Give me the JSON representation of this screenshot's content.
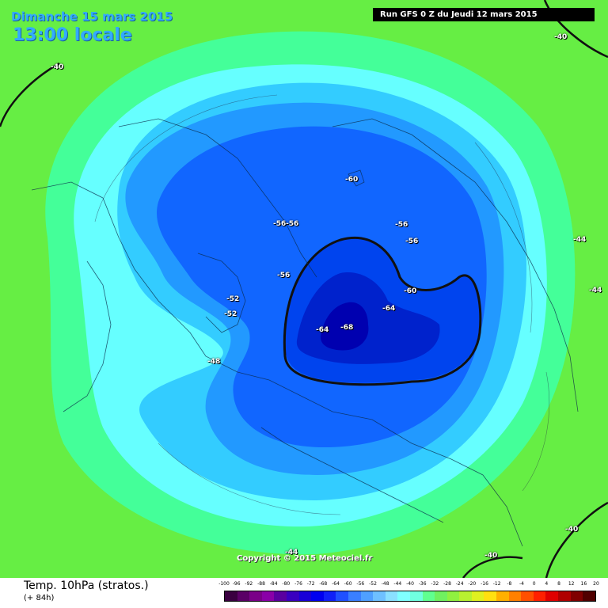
{
  "header": {
    "date": "Dimanche 15 mars 2015",
    "time": "13:00 locale",
    "run": "Run GFS 0 Z du Jeudi 12 mars 2015"
  },
  "copyright": "Copyright © 2015 Meteociel.fr",
  "footer": {
    "title": "Temp. 10hPa (stratos.)",
    "step": "(+ 84h)"
  },
  "contour_labels": [
    {
      "text": "-40"
    },
    {
      "text": "-40"
    },
    {
      "text": "-44"
    },
    {
      "text": "-44"
    },
    {
      "text": "-48"
    },
    {
      "text": "-52"
    },
    {
      "text": "-52"
    },
    {
      "text": "-56"
    },
    {
      "text": "-56"
    },
    {
      "text": "-56"
    },
    {
      "text": "-56"
    },
    {
      "text": "-56"
    },
    {
      "text": "-60"
    },
    {
      "text": "-60"
    },
    {
      "text": "-64"
    },
    {
      "text": "-64"
    },
    {
      "text": "-68"
    },
    {
      "text": "-40"
    },
    {
      "text": "-40"
    },
    {
      "text": "-44"
    }
  ],
  "scale": {
    "labels": [
      "-100",
      "-96",
      "-92",
      "-88",
      "-84",
      "-80",
      "-76",
      "-72",
      "-68",
      "-64",
      "-60",
      "-56",
      "-52",
      "-48",
      "-44",
      "-40",
      "-36",
      "-32",
      "-28",
      "-24",
      "-20",
      "-16",
      "-12",
      "-8",
      "-4",
      "0",
      "4",
      "8",
      "12",
      "16",
      "20"
    ],
    "colors": [
      "#3a0040",
      "#5a0066",
      "#7a0088",
      "#8a00a8",
      "#5a00a0",
      "#3a00c0",
      "#1800d8",
      "#0000f0",
      "#1020f8",
      "#2050ff",
      "#3a7fff",
      "#4fa0ff",
      "#6ec0ff",
      "#8ae0ff",
      "#80ffff",
      "#70ffe0",
      "#60ff90",
      "#70f060",
      "#90f040",
      "#b8f030",
      "#e0f020",
      "#ffe010",
      "#ffb000",
      "#ff8000",
      "#ff5000",
      "#ff2000",
      "#e00000",
      "#b00000",
      "#800000",
      "#500000"
    ]
  },
  "colors": {
    "green": "#66ee44",
    "mint": "#44ff99",
    "cyan": "#66ffff",
    "light_blue": "#33ccff",
    "mid_blue": "#2299ff",
    "blue": "#1166ff",
    "deep_blue": "#0044ee",
    "core_blue": "#0022cc"
  }
}
